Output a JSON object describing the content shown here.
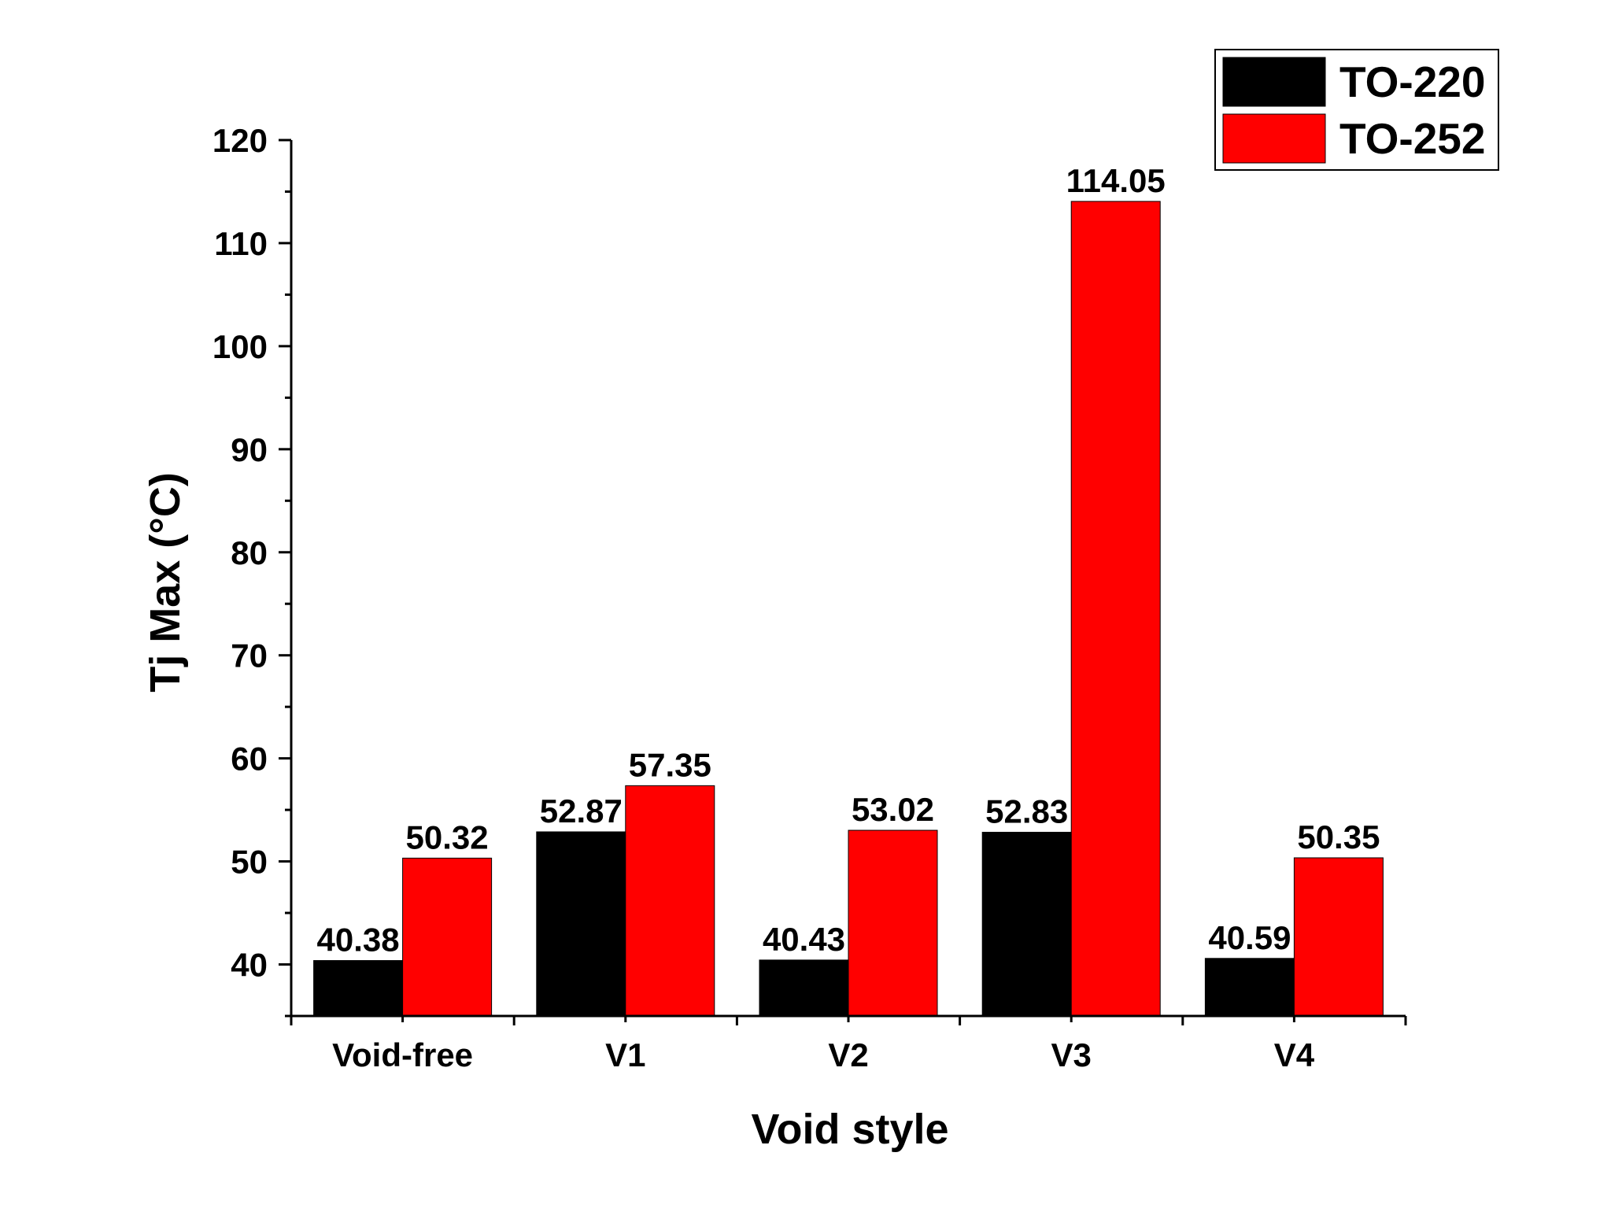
{
  "chart_data": {
    "type": "bar",
    "xlabel": "Void style",
    "ylabel": "Tj Max (°C)",
    "categories": [
      "Void-free",
      "V1",
      "V2",
      "V3",
      "V4"
    ],
    "series": [
      {
        "name": "TO-220",
        "color": "#000000",
        "values": [
          40.38,
          52.87,
          40.43,
          52.83,
          40.59
        ],
        "labels": [
          "40.38",
          "52.87",
          "40.43",
          "52.83",
          "40.59"
        ]
      },
      {
        "name": "TO-252",
        "color": "#ff0000",
        "values": [
          50.32,
          57.35,
          53.02,
          114.05,
          50.35
        ],
        "labels": [
          "50.32",
          "57.35",
          "53.02",
          "114.05",
          "50.35"
        ]
      }
    ],
    "ylim": [
      35,
      120
    ],
    "yticks": [
      40,
      50,
      60,
      70,
      80,
      90,
      100,
      110,
      120
    ],
    "ytick_labels": [
      "40",
      "50",
      "60",
      "70",
      "80",
      "90",
      "100",
      "110",
      "120"
    ],
    "grid": false,
    "legend_position": "top-right"
  }
}
